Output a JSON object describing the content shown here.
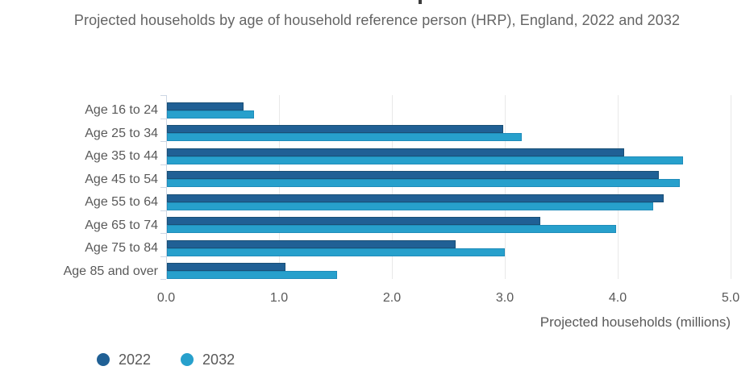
{
  "chart_data": {
    "type": "bar",
    "orientation": "horizontal",
    "subtitle": "Projected households by age of household reference person (HRP), England, 2022 and 2032",
    "xlabel": "Projected households (millions)",
    "categories": [
      "Age 16 to 24",
      "Age 25 to 34",
      "Age 35 to 44",
      "Age 45 to 54",
      "Age 55 to 64",
      "Age 65 to 74",
      "Age 75 to 84",
      "Age 85 and over"
    ],
    "series": [
      {
        "name": "2022",
        "color": "#206095",
        "values": [
          0.68,
          2.98,
          4.05,
          4.36,
          4.4,
          3.31,
          2.56,
          1.05
        ]
      },
      {
        "name": "2032",
        "color": "#27a0cc",
        "values": [
          0.77,
          3.14,
          4.57,
          4.54,
          4.31,
          3.98,
          2.99,
          1.51
        ]
      }
    ],
    "xlim": [
      0,
      5
    ],
    "xtick_labels": [
      "0.0",
      "1.0",
      "2.0",
      "3.0",
      "4.0",
      "5.0"
    ],
    "grid": "vertical-gridlines-on",
    "grid_color": "#e8e8e8",
    "axis_color": "#ccd6e4",
    "text_color": "#595959",
    "legend_position": "bottom-left",
    "legend_labels": [
      "2022",
      "2032"
    ]
  }
}
